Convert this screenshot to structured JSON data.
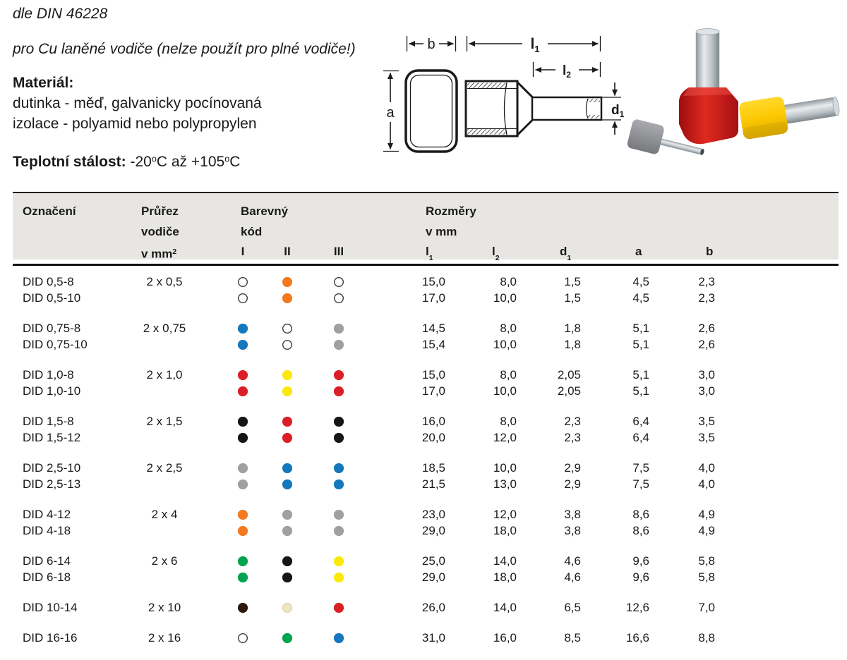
{
  "intro": {
    "standard": "dle DIN 46228",
    "subtitle": "pro Cu laněné vodiče (nelze použít pro plné vodiče!)",
    "material": {
      "label": "Materiál:",
      "line1": "dutinka - měď, galvanicky pocínovaná",
      "line2": "izolace - polyamid nebo polypropylen"
    },
    "temp": {
      "label": "Teplotní stálost:",
      "from": "-20",
      "deg": "o",
      "unit": "C",
      "conj": "až",
      "to": "+105"
    }
  },
  "diagram": {
    "a": "a",
    "b": "b",
    "l1": {
      "base": "l",
      "sub": "1"
    },
    "l2": {
      "base": "l",
      "sub": "2"
    },
    "d1": {
      "base": "d",
      "sub": "1"
    }
  },
  "table": {
    "headers": {
      "designation": "Označení",
      "cross_section": {
        "line1": "Průřez",
        "line2": "vodiče",
        "line3_pre": "v mm",
        "line3_sup": "2"
      },
      "color_code": {
        "line1": "Barevný",
        "line2": "kód",
        "cols": [
          "I",
          "II",
          "III"
        ]
      },
      "dimensions": {
        "line1": "Rozměry",
        "line2": "v mm",
        "cols": [
          {
            "base": "l",
            "sub": "1"
          },
          {
            "base": "l",
            "sub": "2"
          },
          {
            "base": "d",
            "sub": "1"
          },
          {
            "base": "a",
            "sub": ""
          },
          {
            "base": "b",
            "sub": ""
          }
        ]
      }
    },
    "palette": {
      "white": {
        "fill": "#ffffff",
        "border": "#3c3c3c"
      },
      "orange": {
        "fill": "#f4791f",
        "border": "#f4791f"
      },
      "blue": {
        "fill": "#1577be",
        "border": "#1577be"
      },
      "grey": {
        "fill": "#a0a0a2",
        "border": "#a0a0a2"
      },
      "red": {
        "fill": "#dc1e26",
        "border": "#dc1e26"
      },
      "yellow": {
        "fill": "#fde80c",
        "border": "#fde80c"
      },
      "black": {
        "fill": "#161616",
        "border": "#161616"
      },
      "green": {
        "fill": "#00a350",
        "border": "#00a350"
      },
      "brown": {
        "fill": "#30180c",
        "border": "#30180c"
      },
      "ivory": {
        "fill": "#ede7c2",
        "border": "#ddd5a9"
      }
    },
    "groups": [
      {
        "rows": [
          {
            "name": "DID 0,5-8",
            "section": "2 x 0,5",
            "colors": [
              "white",
              "orange",
              "white"
            ],
            "dims": [
              "15,0",
              "8,0",
              "1,5",
              "4,5",
              "2,3"
            ]
          },
          {
            "name": "DID 0,5-10",
            "section": "",
            "colors": [
              "white",
              "orange",
              "white"
            ],
            "dims": [
              "17,0",
              "10,0",
              "1,5",
              "4,5",
              "2,3"
            ]
          }
        ]
      },
      {
        "rows": [
          {
            "name": "DID 0,75-8",
            "section": "2 x 0,75",
            "colors": [
              "blue",
              "white",
              "grey"
            ],
            "dims": [
              "14,5",
              "8,0",
              "1,8",
              "5,1",
              "2,6"
            ]
          },
          {
            "name": "DID 0,75-10",
            "section": "",
            "colors": [
              "blue",
              "white",
              "grey"
            ],
            "dims": [
              "15,4",
              "10,0",
              "1,8",
              "5,1",
              "2,6"
            ]
          }
        ]
      },
      {
        "rows": [
          {
            "name": "DID 1,0-8",
            "section": "2 x 1,0",
            "colors": [
              "red",
              "yellow",
              "red"
            ],
            "dims": [
              "15,0",
              "8,0",
              "2,05",
              "5,1",
              "3,0"
            ]
          },
          {
            "name": "DID 1,0-10",
            "section": "",
            "colors": [
              "red",
              "yellow",
              "red"
            ],
            "dims": [
              "17,0",
              "10,0",
              "2,05",
              "5,1",
              "3,0"
            ]
          }
        ]
      },
      {
        "rows": [
          {
            "name": "DID 1,5-8",
            "section": "2 x 1,5",
            "colors": [
              "black",
              "red",
              "black"
            ],
            "dims": [
              "16,0",
              "8,0",
              "2,3",
              "6,4",
              "3,5"
            ]
          },
          {
            "name": "DID 1,5-12",
            "section": "",
            "colors": [
              "black",
              "red",
              "black"
            ],
            "dims": [
              "20,0",
              "12,0",
              "2,3",
              "6,4",
              "3,5"
            ]
          }
        ]
      },
      {
        "rows": [
          {
            "name": "DID 2,5-10",
            "section": "2 x 2,5",
            "colors": [
              "grey",
              "blue",
              "blue"
            ],
            "dims": [
              "18,5",
              "10,0",
              "2,9",
              "7,5",
              "4,0"
            ]
          },
          {
            "name": "DID 2,5-13",
            "section": "",
            "colors": [
              "grey",
              "blue",
              "blue"
            ],
            "dims": [
              "21,5",
              "13,0",
              "2,9",
              "7,5",
              "4,0"
            ]
          }
        ]
      },
      {
        "rows": [
          {
            "name": "DID 4-12",
            "section": "2 x 4",
            "colors": [
              "orange",
              "grey",
              "grey"
            ],
            "dims": [
              "23,0",
              "12,0",
              "3,8",
              "8,6",
              "4,9"
            ]
          },
          {
            "name": "DID 4-18",
            "section": "",
            "colors": [
              "orange",
              "grey",
              "grey"
            ],
            "dims": [
              "29,0",
              "18,0",
              "3,8",
              "8,6",
              "4,9"
            ]
          }
        ]
      },
      {
        "rows": [
          {
            "name": "DID 6-14",
            "section": "2 x 6",
            "colors": [
              "green",
              "black",
              "yellow"
            ],
            "dims": [
              "25,0",
              "14,0",
              "4,6",
              "9,6",
              "5,8"
            ]
          },
          {
            "name": "DID 6-18",
            "section": "",
            "colors": [
              "green",
              "black",
              "yellow"
            ],
            "dims": [
              "29,0",
              "18,0",
              "4,6",
              "9,6",
              "5,8"
            ]
          }
        ]
      },
      {
        "rows": [
          {
            "name": "DID 10-14",
            "section": "2 x 10",
            "colors": [
              "brown",
              "ivory",
              "red"
            ],
            "dims": [
              "26,0",
              "14,0",
              "6,5",
              "12,6",
              "7,0"
            ]
          }
        ]
      },
      {
        "rows": [
          {
            "name": "DID 16-16",
            "section": "2 x 16",
            "colors": [
              "white",
              "green",
              "blue"
            ],
            "dims": [
              "31,0",
              "16,0",
              "8,5",
              "16,6",
              "8,8"
            ]
          }
        ]
      }
    ]
  }
}
